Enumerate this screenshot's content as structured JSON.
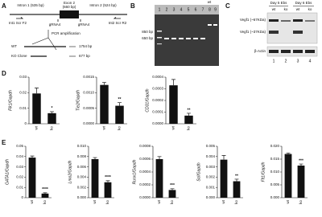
{
  "panels": {
    "a": {
      "label": "A",
      "intron1": "Intron 1 (535 bp)",
      "exon2": [
        "Exon 2",
        "(660 bp)"
      ],
      "intron2": "Intron 2 (524 bp)",
      "primer_f": "Int1 Scr F2",
      "grna_left": "gRNA4",
      "grna_right": "gRNA4",
      "primer_r": "Int2 Scr R2",
      "pcr": "PCR amplification",
      "wt": "WT",
      "wt_size": "1754 bp",
      "ko": "KO Clone",
      "ko_size": "677 bp"
    },
    "b": {
      "label": "B",
      "lanes": [
        "1",
        "2",
        "3",
        "4",
        "5",
        "6",
        "7",
        "8",
        "9"
      ],
      "wt": "wt",
      "marker_high": "850 bp",
      "marker_low": "650 bp"
    },
    "c": {
      "label": "C",
      "day5": "Day 5 Ebs",
      "day6": "Day 6 Ebs",
      "genotypes": [
        "wt",
        "ko",
        "wt",
        "ko"
      ],
      "band_high": "Vegf1 (~67KDa)",
      "band_low": "Vegf1 (~37KDa)",
      "actin": "β-Actin",
      "lanes": [
        "1",
        "2",
        "3",
        "4"
      ]
    },
    "d": {
      "label": "D"
    },
    "e": {
      "label": "E"
    }
  },
  "chart_data": [
    {
      "type": "bar",
      "ylabel": "Flk1/Gapdh",
      "categories": [
        "wt",
        "ko"
      ],
      "values": [
        0.0195,
        0.0068
      ],
      "errors": [
        0.0035,
        0.001
      ],
      "color": "#111111",
      "ylim": [
        0,
        0.03
      ],
      "yticks": [
        0,
        0.01,
        0.02,
        0.03
      ],
      "annotations": [
        "*"
      ]
    },
    {
      "type": "bar",
      "ylabel": "Tie2/Gapdh",
      "categories": [
        "wt",
        "ko"
      ],
      "values": [
        0.00125,
        0.00058
      ],
      "errors": [
        8e-05,
        0.0001
      ],
      "color": "#111111",
      "ylim": [
        0,
        0.0015
      ],
      "yticks": [
        {
          "value": 0,
          "label": "0.0000"
        },
        {
          "value": 0.0005,
          "label": "0.0005"
        },
        {
          "value": 0.001,
          "label": "0.0010"
        },
        {
          "value": 0.0015,
          "label": "0.0015"
        }
      ],
      "annotations": [
        "**"
      ]
    },
    {
      "type": "bar",
      "ylabel": "CD31/Gapdh",
      "categories": [
        "wt",
        "ko"
      ],
      "values": [
        0.00033,
        7e-05
      ],
      "errors": [
        5e-05,
        2e-05
      ],
      "color": "#111111",
      "ylim": [
        0,
        0.0004
      ],
      "yticks": [
        {
          "value": 0,
          "label": "0.0000"
        },
        0.0001,
        0.0002,
        0.0003,
        0.0004
      ],
      "annotations": [
        "**"
      ]
    },
    {
      "type": "bar",
      "ylabel": "GATA1/Gapdh",
      "categories": [
        "wt",
        "ko"
      ],
      "values": [
        0.039,
        0.004
      ],
      "errors": [
        0.0015,
        0.0008
      ],
      "color": "#111111",
      "ylim": [
        0,
        0.05
      ],
      "yticks": [
        0,
        0.01,
        0.02,
        0.03,
        0.04,
        0.05
      ],
      "annotations": [
        "****"
      ]
    },
    {
      "type": "bar",
      "ylabel": "Lmo2/Gapdh",
      "categories": [
        "wt",
        "ko"
      ],
      "values": [
        0.0075,
        0.003
      ],
      "errors": [
        0.0003,
        0.0003
      ],
      "color": "#111111",
      "ylim": [
        0,
        0.01
      ],
      "yticks": [
        {
          "value": 0,
          "label": "0.000"
        },
        0.002,
        0.004,
        0.006,
        0.008,
        {
          "value": 0.01,
          "label": "0.010"
        }
      ],
      "annotations": [
        "****"
      ]
    },
    {
      "type": "bar",
      "ylabel": "Runx1/Gapdh",
      "categories": [
        "wt",
        "ko"
      ],
      "values": [
        0.0006,
        0.00012
      ],
      "errors": [
        4e-05,
        2e-05
      ],
      "color": "#111111",
      "ylim": [
        0,
        0.0008
      ],
      "yticks": [
        {
          "value": 0,
          "label": "0.0000"
        },
        0.0002,
        0.0004,
        0.0006,
        0.0008
      ],
      "annotations": [
        "***"
      ]
    },
    {
      "type": "bar",
      "ylabel": "Scl/Gapdh",
      "categories": [
        "wt",
        "ko"
      ],
      "values": [
        0.0037,
        0.0016
      ],
      "errors": [
        0.0004,
        0.0002
      ],
      "color": "#111111",
      "ylim": [
        0,
        0.005
      ],
      "yticks": [
        {
          "value": 0,
          "label": "0.000"
        },
        0.001,
        0.002,
        0.003,
        0.004,
        0.005
      ],
      "annotations": [
        "**"
      ]
    },
    {
      "type": "bar",
      "ylabel": "Flt1/Gapdh",
      "categories": [
        "wt",
        "ko"
      ],
      "values": [
        0.017,
        0.0125
      ],
      "errors": [
        0.0004,
        0.0006
      ],
      "color": "#111111",
      "ylim": [
        0,
        0.02
      ],
      "yticks": [
        {
          "value": 0,
          "label": "0.000"
        },
        0.005,
        {
          "value": 0.01,
          "label": "0.010"
        },
        0.015,
        {
          "value": 0.02,
          "label": "0.020"
        }
      ],
      "annotations": [
        "***"
      ]
    }
  ]
}
